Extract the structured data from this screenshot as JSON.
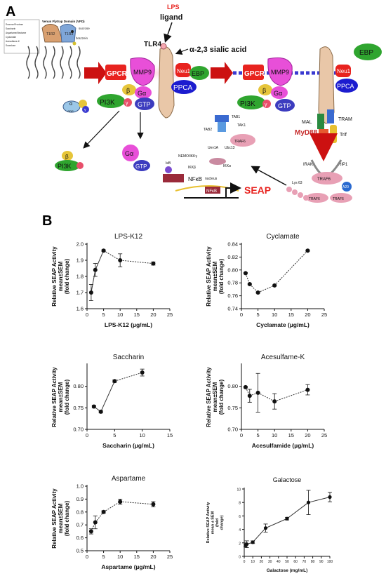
{
  "panel_a": {
    "letter": "A",
    "lps_label": "LPS",
    "ligand_label": "ligand",
    "tlr4_label": "TLR4",
    "sialic_label": "α-2,3 sialic acid",
    "vfd_label": "Venus Flytrap Domain (VFD)",
    "sweeteners_list": [
      "Sucrose/Fructose",
      "Saccharin",
      "Aspartame/Neotame",
      "Cyclamate",
      "Acesulfame-K",
      "Sucralose"
    ],
    "t1r2_label": "T1R2",
    "t1r3_label": "T1R3",
    "sucrose_label": "sucrose",
    "brazzein_label": "brazzein",
    "gpcr_label": "GPCR",
    "mmp9_label": "MMP9",
    "neu1_label": "Neu1",
    "ebp_label": "EBP",
    "ppca_label": "PPCA",
    "beta_label": "β",
    "galpha_label": "Gα",
    "gamma_label": "γ",
    "pi3k_label": "PI3K",
    "gtp_label": "GTP",
    "gdp_label": "GDP",
    "alpha_label": "α",
    "mal_label": "MAL",
    "tram_label": "TRAM",
    "myd88_label": "MyD88",
    "trif_label": "Trif",
    "irak_label": "IRAKs",
    "rip1_label": "RIP1",
    "traf6_label": "TRAF6",
    "a20_label": "A20",
    "lys63_label": "Lys 63",
    "tab1_label": "TAB1",
    "tak1_label": "TAK1",
    "tab2_label": "TAB2",
    "uev1a_label": "Uev1A",
    "ubc13_label": "Ubc13",
    "nemo_label": "NEMO/IKKγ",
    "ikka_label": "IKKα",
    "ikkb_label": "IKKβ",
    "ikb_label": "IκB",
    "nfkb_label": "NFκB",
    "nucleus_label": "nucleus",
    "seap_label": "SEAP",
    "colors": {
      "gpcr": "#e8231f",
      "mmp9": "#e84fd8",
      "neu1": "#e8231f",
      "ebp": "#2fa52f",
      "ppca": "#1c1ccf",
      "pi3k": "#2fa52f",
      "beta": "#e6c53a",
      "galpha": "#e84fd8",
      "gamma": "#e84f6a",
      "gtp": "#3c3cbf",
      "seap": "#e8231f",
      "arrow_red": "#cc1111",
      "membrane_blue": "#3a3ad0",
      "traf6": "#e8a0b5"
    }
  },
  "panel_b": {
    "letter": "B",
    "ylabel_lines": [
      "Relative SEAP Activity",
      "mean±SEM",
      "(fold change)"
    ],
    "galactose_ylabel_lines": [
      "Relative SEAP Activity",
      "mean ± SEM",
      "(fold",
      "change)"
    ]
  },
  "chart_data": [
    {
      "type": "line",
      "title": "LPS-K12",
      "xlabel": "LPS-K12 (µg/mL)",
      "ylabel": "Relative SEAP Activity mean±SEM (fold change)",
      "xlim": [
        0,
        25
      ],
      "ylim": [
        1.6,
        2.0
      ],
      "xticks": [
        0,
        5,
        10,
        15,
        20,
        25
      ],
      "yticks": [
        1.6,
        1.7,
        1.8,
        1.9,
        2.0
      ],
      "x": [
        1.25,
        2.5,
        5,
        10,
        20
      ],
      "y": [
        1.7,
        1.84,
        1.96,
        1.9,
        1.88
      ],
      "err": [
        0.05,
        0.04,
        0.005,
        0.04,
        0.01
      ],
      "dashed_from_index": 2
    },
    {
      "type": "line",
      "title": "Cyclamate",
      "xlabel": "Cyclamate (µg/mL)",
      "ylabel": "Relative SEAP Activity mean±SEM (fold change)",
      "xlim": [
        0,
        25
      ],
      "ylim": [
        0.74,
        0.84
      ],
      "xticks": [
        0,
        5,
        10,
        15,
        20,
        25
      ],
      "yticks": [
        0.74,
        0.76,
        0.78,
        0.8,
        0.82,
        0.84
      ],
      "x": [
        1.25,
        2.5,
        5,
        10,
        20
      ],
      "y": [
        0.795,
        0.778,
        0.765,
        0.776,
        0.83
      ],
      "err": [
        0.001,
        0.001,
        0.001,
        0.001,
        0.001
      ],
      "dashed_from_index": 0
    },
    {
      "type": "line",
      "title": "Saccharin",
      "xlabel": "Saccharin (µg/mL)",
      "ylabel": "Relative SEAP Activity mean±SEM (fold change)",
      "xlim": [
        0,
        15
      ],
      "ylim": [
        0.7,
        0.85
      ],
      "xticks": [
        0,
        5,
        10,
        15
      ],
      "yticks": [
        0.7,
        0.75,
        0.8
      ],
      "x": [
        1.25,
        2.5,
        5,
        10
      ],
      "y": [
        0.753,
        0.741,
        0.812,
        0.832
      ],
      "err": [
        0.003,
        0.003,
        0.003,
        0.008
      ],
      "dashed_from_index": 2
    },
    {
      "type": "line",
      "title": "Acesulfame-K",
      "xlabel": "Acesulfamide (µg/mL)",
      "ylabel": "Relative SEAP Activity mean±SEM (fold change)",
      "xlim": [
        0,
        25
      ],
      "ylim": [
        0.7,
        0.85
      ],
      "xticks": [
        0,
        5,
        10,
        15,
        20,
        25
      ],
      "yticks": [
        0.7,
        0.75,
        0.8
      ],
      "x": [
        1.25,
        2.5,
        5,
        10,
        20
      ],
      "y": [
        0.798,
        0.778,
        0.785,
        0.765,
        0.792
      ],
      "err": [
        0.002,
        0.015,
        0.045,
        0.018,
        0.012
      ],
      "dashed_from_index": 0
    },
    {
      "type": "line",
      "title": "Aspartame",
      "xlabel": "Aspartame (µg/mL)",
      "ylabel": "Relative SEAP Activity mean±SEM (fold change)",
      "xlim": [
        0,
        25
      ],
      "ylim": [
        0.5,
        1.0
      ],
      "xticks": [
        0,
        5,
        10,
        15,
        20,
        25
      ],
      "yticks": [
        0.5,
        0.6,
        0.7,
        0.8,
        0.9,
        1.0
      ],
      "x": [
        1.25,
        2.5,
        5,
        10,
        20
      ],
      "y": [
        0.65,
        0.72,
        0.8,
        0.88,
        0.86
      ],
      "err": [
        0.02,
        0.05,
        0.01,
        0.02,
        0.02
      ],
      "dashed_from_index": 0
    },
    {
      "type": "line",
      "title": "Galactose",
      "xlabel": "Galactose (mg/mL)",
      "ylabel": "Relative SEAP Activity mean ± SEM (fold change)",
      "xlim": [
        0,
        100
      ],
      "ylim": [
        0,
        10
      ],
      "xticks": [
        0,
        10,
        20,
        30,
        40,
        50,
        60,
        70,
        80,
        90,
        100
      ],
      "yticks": [
        0,
        2,
        4,
        6,
        8,
        10
      ],
      "x": [
        1.5,
        3,
        10,
        25,
        50,
        75,
        100
      ],
      "y": [
        1.7,
        1.8,
        2.1,
        4.2,
        5.6,
        8.0,
        8.8
      ],
      "err": [
        0.3,
        0.5,
        0.2,
        0.6,
        0.2,
        1.8,
        0.7
      ],
      "dashed_from_index": 99
    }
  ]
}
